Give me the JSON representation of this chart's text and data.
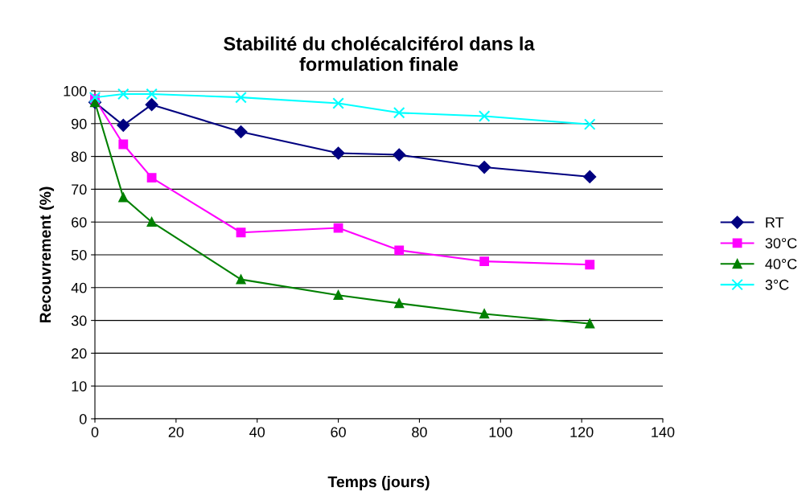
{
  "chart_data": {
    "type": "line",
    "title": "Stabilité du cholécalciférol dans la\nformulation finale",
    "xlabel": "Temps (jours)",
    "ylabel": "Recouvrement (%)",
    "x": [
      0,
      7,
      14,
      36,
      60,
      75,
      96,
      122
    ],
    "series": [
      {
        "name": "RT",
        "color": "#000080",
        "marker": "diamond",
        "values": [
          96.5,
          89.5,
          95.8,
          87.5,
          81,
          80.5,
          76.7,
          73.8
        ]
      },
      {
        "name": "30°C",
        "color": "#ff00ff",
        "marker": "square",
        "values": [
          97.5,
          83.7,
          73.5,
          56.8,
          58.2,
          51.4,
          48,
          47
        ]
      },
      {
        "name": "40°C",
        "color": "#008000",
        "marker": "triangle",
        "values": [
          96.5,
          67.5,
          60,
          42.5,
          37.7,
          35.2,
          32,
          29
        ]
      },
      {
        "name": "3°C",
        "color": "#00ffff",
        "marker": "cross",
        "values": [
          98,
          99,
          99,
          98,
          96.2,
          93.3,
          92.3,
          89.8
        ]
      }
    ],
    "xlim": [
      0,
      140
    ],
    "xticks": [
      0,
      20,
      40,
      60,
      80,
      100,
      120,
      140
    ],
    "ylim": [
      0,
      100
    ],
    "yticks": [
      0,
      10,
      20,
      30,
      40,
      50,
      60,
      70,
      80,
      90,
      100
    ],
    "grid": "y",
    "legend": "right",
    "line_style": "solid"
  }
}
